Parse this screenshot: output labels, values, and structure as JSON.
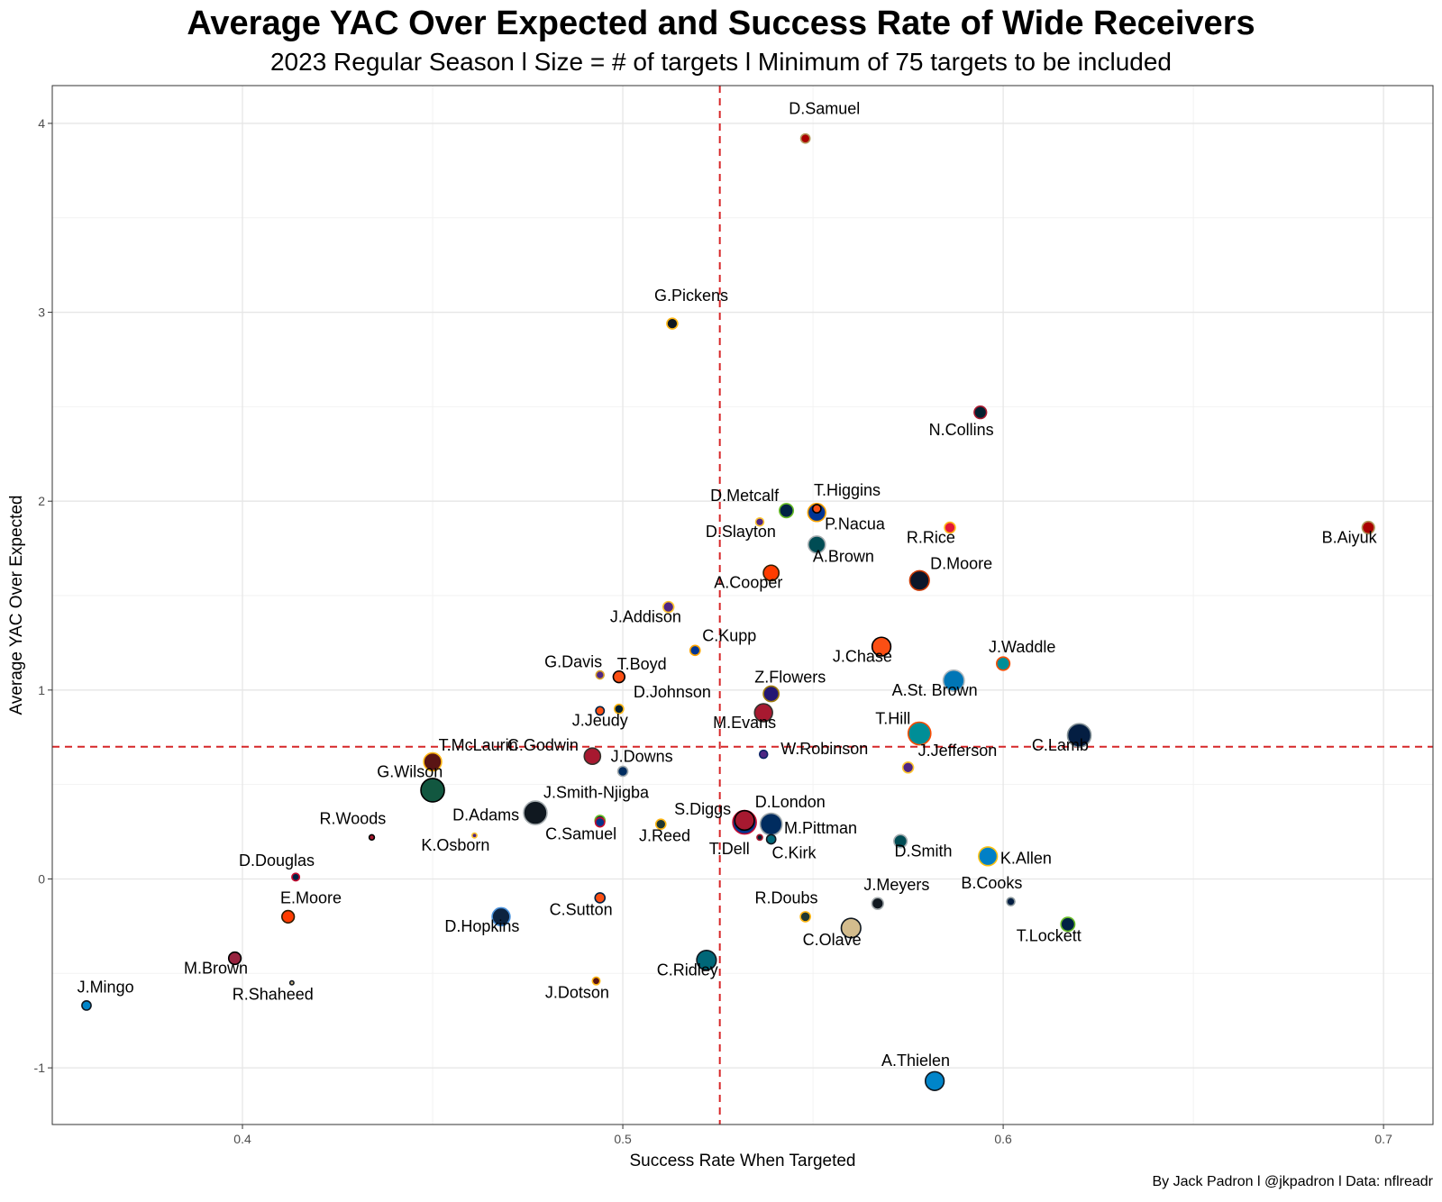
{
  "title": "Average YAC Over Expected and Success Rate of Wide Receivers",
  "subtitle": "2023 Regular Season l Size = # of targets l Minimum of 75 targets to be included",
  "caption": "By Jack Padron l @jkpadron l Data: nflreadr",
  "chart_data": {
    "type": "scatter",
    "title": "Average YAC Over Expected and Success Rate of Wide Receivers",
    "xlabel": "Success Rate When Targeted",
    "ylabel": "Average YAC Over Expected",
    "xlim": [
      0.35,
      0.713
    ],
    "ylim": [
      -1.3,
      4.2
    ],
    "xticks": [
      0.4,
      0.5,
      0.6,
      0.7
    ],
    "xtick_labels": [
      "0.4",
      "0.5",
      "0.6",
      "0.7"
    ],
    "yticks": [
      -1,
      0,
      1,
      2,
      3,
      4
    ],
    "ytick_labels": [
      "-1",
      "0",
      "1",
      "2",
      "3",
      "4"
    ],
    "grid": true,
    "reference_lines": {
      "x": 0.5255,
      "y": 0.7,
      "color": "#d62728",
      "style": "dashed"
    },
    "size_variable": "# of targets",
    "points": [
      {
        "label": "D.Samuel",
        "x": 0.548,
        "y": 3.92,
        "size": 85,
        "fill": "#aa0000",
        "stroke": "#b3995d",
        "lx": 0.553,
        "ly": 4.05
      },
      {
        "label": "G.Pickens",
        "x": 0.513,
        "y": 2.94,
        "size": 95,
        "fill": "#101820",
        "stroke": "#ffb612",
        "lx": 0.518,
        "ly": 3.06
      },
      {
        "label": "N.Collins",
        "x": 0.594,
        "y": 2.47,
        "size": 105,
        "fill": "#03202f",
        "stroke": "#a71930",
        "lx": 0.589,
        "ly": 2.35
      },
      {
        "label": "D.Metcalf",
        "x": 0.543,
        "y": 1.95,
        "size": 115,
        "fill": "#002244",
        "stroke": "#69be28",
        "lx": 0.532,
        "ly": 2.0
      },
      {
        "label": "T.Higgins",
        "x": 0.551,
        "y": 1.96,
        "size": 80,
        "fill": "#fb4f14",
        "stroke": "#000000",
        "lx": 0.559,
        "ly": 2.03
      },
      {
        "label": "P.Nacua",
        "x": 0.551,
        "y": 1.94,
        "size": 140,
        "fill": "#003594",
        "stroke": "#ffa300",
        "lx": 0.561,
        "ly": 1.85
      },
      {
        "label": "D.Slayton",
        "x": 0.536,
        "y": 1.89,
        "size": 78,
        "fill": "#4f2683",
        "stroke": "#ffc62f",
        "lx": 0.531,
        "ly": 1.81
      },
      {
        "label": "A.Brown",
        "x": 0.551,
        "y": 1.77,
        "size": 135,
        "fill": "#004c54",
        "stroke": "#a5acaf",
        "lx": 0.558,
        "ly": 1.68
      },
      {
        "label": "R.Rice",
        "x": 0.586,
        "y": 1.86,
        "size": 95,
        "fill": "#e31837",
        "stroke": "#ffb81c",
        "lx": 0.581,
        "ly": 1.78
      },
      {
        "label": "B.Aiyuk",
        "x": 0.696,
        "y": 1.86,
        "size": 105,
        "fill": "#aa0000",
        "stroke": "#b3995d",
        "lx": 0.691,
        "ly": 1.78
      },
      {
        "label": "A.Cooper",
        "x": 0.539,
        "y": 1.62,
        "size": 125,
        "fill": "#ff3c00",
        "stroke": "#311d00",
        "lx": 0.533,
        "ly": 1.54
      },
      {
        "label": "D.Moore",
        "x": 0.578,
        "y": 1.58,
        "size": 150,
        "fill": "#0b162a",
        "stroke": "#c83803",
        "lx": 0.589,
        "ly": 1.64
      },
      {
        "label": "J.Addison",
        "x": 0.512,
        "y": 1.44,
        "size": 95,
        "fill": "#4f2683",
        "stroke": "#ffc62f",
        "lx": 0.506,
        "ly": 1.36
      },
      {
        "label": "C.Kupp",
        "x": 0.519,
        "y": 1.21,
        "size": 90,
        "fill": "#003594",
        "stroke": "#ffa300",
        "lx": 0.528,
        "ly": 1.26
      },
      {
        "label": "J.Chase",
        "x": 0.568,
        "y": 1.23,
        "size": 145,
        "fill": "#fb4f14",
        "stroke": "#000000",
        "lx": 0.563,
        "ly": 1.15
      },
      {
        "label": "J.Waddle",
        "x": 0.6,
        "y": 1.14,
        "size": 110,
        "fill": "#008e97",
        "stroke": "#fc4c02",
        "lx": 0.605,
        "ly": 1.2
      },
      {
        "label": "G.Davis",
        "x": 0.494,
        "y": 1.08,
        "size": 78,
        "fill": "#4f2683",
        "stroke": "#d7a22a",
        "lx": 0.487,
        "ly": 1.12
      },
      {
        "label": "T.Boyd",
        "x": 0.499,
        "y": 1.07,
        "size": 100,
        "fill": "#fb4f14",
        "stroke": "#000000",
        "lx": 0.505,
        "ly": 1.11
      },
      {
        "label": "Z.Flowers",
        "x": 0.539,
        "y": 0.98,
        "size": 125,
        "fill": "#241773",
        "stroke": "#9e7c0c",
        "lx": 0.544,
        "ly": 1.04
      },
      {
        "label": "A.St. Brown",
        "x": 0.587,
        "y": 1.05,
        "size": 160,
        "fill": "#0076b6",
        "stroke": "#b0b7bc",
        "lx": 0.582,
        "ly": 0.97
      },
      {
        "label": "D.Johnson",
        "x": 0.499,
        "y": 0.9,
        "size": 85,
        "fill": "#03202f",
        "stroke": "#ffb612",
        "lx": 0.513,
        "ly": 0.96
      },
      {
        "label": "M.Evans",
        "x": 0.537,
        "y": 0.88,
        "size": 140,
        "fill": "#a71930",
        "stroke": "#34302b",
        "lx": 0.532,
        "ly": 0.8
      },
      {
        "label": "J.Jeudy",
        "x": 0.494,
        "y": 0.89,
        "size": 80,
        "fill": "#fb4f14",
        "stroke": "#002244",
        "lx": 0.494,
        "ly": 0.81
      },
      {
        "label": "T.Hill",
        "x": 0.578,
        "y": 0.77,
        "size": 170,
        "fill": "#008e97",
        "stroke": "#fc4c02",
        "lx": 0.571,
        "ly": 0.82
      },
      {
        "label": "C.Lamb",
        "x": 0.62,
        "y": 0.76,
        "size": 175,
        "fill": "#041e42",
        "stroke": "#869397",
        "lx": 0.615,
        "ly": 0.68
      },
      {
        "label": "T.McLaurin",
        "x": 0.45,
        "y": 0.62,
        "size": 140,
        "fill": "#5a1414",
        "stroke": "#ffb612",
        "lx": 0.462,
        "ly": 0.68
      },
      {
        "label": "C.Godwin",
        "x": 0.492,
        "y": 0.65,
        "size": 130,
        "fill": "#a71930",
        "stroke": "#34302b",
        "lx": 0.479,
        "ly": 0.68
      },
      {
        "label": "W.Robinson",
        "x": 0.537,
        "y": 0.66,
        "size": 78,
        "fill": "#4f2683",
        "stroke": "#0b2265",
        "lx": 0.553,
        "ly": 0.66
      },
      {
        "label": "J.Jefferson",
        "x": 0.575,
        "y": 0.59,
        "size": 95,
        "fill": "#4f2683",
        "stroke": "#ffc62f",
        "lx": 0.588,
        "ly": 0.65
      },
      {
        "label": "J.Downs",
        "x": 0.5,
        "y": 0.57,
        "size": 90,
        "fill": "#002c5f",
        "stroke": "#a2aaad",
        "lx": 0.505,
        "ly": 0.62
      },
      {
        "label": "G.Wilson",
        "x": 0.45,
        "y": 0.47,
        "size": 175,
        "fill": "#125740",
        "stroke": "#000000",
        "lx": 0.444,
        "ly": 0.54
      },
      {
        "label": "J.Smith-Njigba",
        "x": 0.494,
        "y": 0.31,
        "size": 90,
        "fill": "#002244",
        "stroke": "#69be28",
        "lx": 0.493,
        "ly": 0.43
      },
      {
        "label": "D.London",
        "x": 0.532,
        "y": 0.31,
        "size": 150,
        "fill": "#a71930",
        "stroke": "#000000",
        "lx": 0.544,
        "ly": 0.38
      },
      {
        "label": "S.Diggs",
        "x": 0.532,
        "y": 0.3,
        "size": 175,
        "fill": "#00338d",
        "stroke": "#c60c30",
        "lx": 0.521,
        "ly": 0.34
      },
      {
        "label": "M.Pittman",
        "x": 0.539,
        "y": 0.29,
        "size": 165,
        "fill": "#002c5f",
        "stroke": "#a2aaad",
        "lx": 0.552,
        "ly": 0.24
      },
      {
        "label": "D.Adams",
        "x": 0.477,
        "y": 0.35,
        "size": 175,
        "fill": "#101820",
        "stroke": "#a5acaf",
        "lx": 0.464,
        "ly": 0.31
      },
      {
        "label": "C.Samuel",
        "x": 0.494,
        "y": 0.3,
        "size": 85,
        "fill": "#00338d",
        "stroke": "#c60c30",
        "lx": 0.489,
        "ly": 0.21
      },
      {
        "label": "J.Reed",
        "x": 0.51,
        "y": 0.29,
        "size": 90,
        "fill": "#203731",
        "stroke": "#ffb612",
        "lx": 0.511,
        "ly": 0.2
      },
      {
        "label": "R.Woods",
        "x": 0.434,
        "y": 0.22,
        "size": 60,
        "fill": "#a71930",
        "stroke": "#000000",
        "lx": 0.429,
        "ly": 0.29
      },
      {
        "label": "K.Osborn",
        "x": 0.461,
        "y": 0.23,
        "size": 58,
        "fill": "#4f2683",
        "stroke": "#ffc62f",
        "lx": 0.456,
        "ly": 0.15
      },
      {
        "label": "T.Dell",
        "x": 0.536,
        "y": 0.22,
        "size": 62,
        "fill": "#03202f",
        "stroke": "#a71930",
        "lx": 0.528,
        "ly": 0.13
      },
      {
        "label": "C.Kirk",
        "x": 0.539,
        "y": 0.21,
        "size": 85,
        "fill": "#006778",
        "stroke": "#101820",
        "lx": 0.545,
        "ly": 0.11
      },
      {
        "label": "D.Smith",
        "x": 0.573,
        "y": 0.2,
        "size": 110,
        "fill": "#004c54",
        "stroke": "#a5acaf",
        "lx": 0.579,
        "ly": 0.12
      },
      {
        "label": "K.Allen",
        "x": 0.596,
        "y": 0.12,
        "size": 145,
        "fill": "#0080c6",
        "stroke": "#ffc20e",
        "lx": 0.606,
        "ly": 0.08
      },
      {
        "label": "D.Douglas",
        "x": 0.414,
        "y": 0.01,
        "size": 75,
        "fill": "#002244",
        "stroke": "#c60c30",
        "lx": 0.409,
        "ly": 0.07
      },
      {
        "label": "E.Moore",
        "x": 0.412,
        "y": -0.2,
        "size": 105,
        "fill": "#ff3c00",
        "stroke": "#311d00",
        "lx": 0.418,
        "ly": -0.13
      },
      {
        "label": "J.Meyers",
        "x": 0.567,
        "y": -0.13,
        "size": 100,
        "fill": "#101820",
        "stroke": "#a5acaf",
        "lx": 0.572,
        "ly": -0.06
      },
      {
        "label": "B.Cooks",
        "x": 0.602,
        "y": -0.12,
        "size": 78,
        "fill": "#041e42",
        "stroke": "#869397",
        "lx": 0.597,
        "ly": -0.05
      },
      {
        "label": "C.Sutton",
        "x": 0.494,
        "y": -0.1,
        "size": 90,
        "fill": "#fb4f14",
        "stroke": "#002244",
        "lx": 0.489,
        "ly": -0.19
      },
      {
        "label": "R.Doubs",
        "x": 0.548,
        "y": -0.2,
        "size": 90,
        "fill": "#203731",
        "stroke": "#ffb612",
        "lx": 0.543,
        "ly": -0.13
      },
      {
        "label": "C.Olave",
        "x": 0.56,
        "y": -0.26,
        "size": 150,
        "fill": "#d3bc8d",
        "stroke": "#101820",
        "lx": 0.555,
        "ly": -0.35
      },
      {
        "label": "T.Lockett",
        "x": 0.617,
        "y": -0.24,
        "size": 115,
        "fill": "#002244",
        "stroke": "#69be28",
        "lx": 0.612,
        "ly": -0.33
      },
      {
        "label": "D.Hopkins",
        "x": 0.468,
        "y": -0.2,
        "size": 140,
        "fill": "#0c2340",
        "stroke": "#4b92db",
        "lx": 0.463,
        "ly": -0.28
      },
      {
        "label": "M.Brown",
        "x": 0.398,
        "y": -0.42,
        "size": 105,
        "fill": "#97233f",
        "stroke": "#000000",
        "lx": 0.393,
        "ly": -0.5
      },
      {
        "label": "C.Ridley",
        "x": 0.522,
        "y": -0.43,
        "size": 150,
        "fill": "#006778",
        "stroke": "#101820",
        "lx": 0.517,
        "ly": -0.51
      },
      {
        "label": "J.Dotson",
        "x": 0.493,
        "y": -0.54,
        "size": 75,
        "fill": "#5a1414",
        "stroke": "#ffb612",
        "lx": 0.488,
        "ly": -0.63
      },
      {
        "label": "R.Shaheed",
        "x": 0.413,
        "y": -0.55,
        "size": 52,
        "fill": "#d3bc8d",
        "stroke": "#101820",
        "lx": 0.408,
        "ly": -0.64
      },
      {
        "label": "J.Mingo",
        "x": 0.359,
        "y": -0.67,
        "size": 85,
        "fill": "#0085ca",
        "stroke": "#101820",
        "lx": 0.364,
        "ly": -0.6
      },
      {
        "label": "A.Thielen",
        "x": 0.582,
        "y": -1.07,
        "size": 145,
        "fill": "#0085ca",
        "stroke": "#101820",
        "lx": 0.577,
        "ly": -0.99
      }
    ]
  }
}
